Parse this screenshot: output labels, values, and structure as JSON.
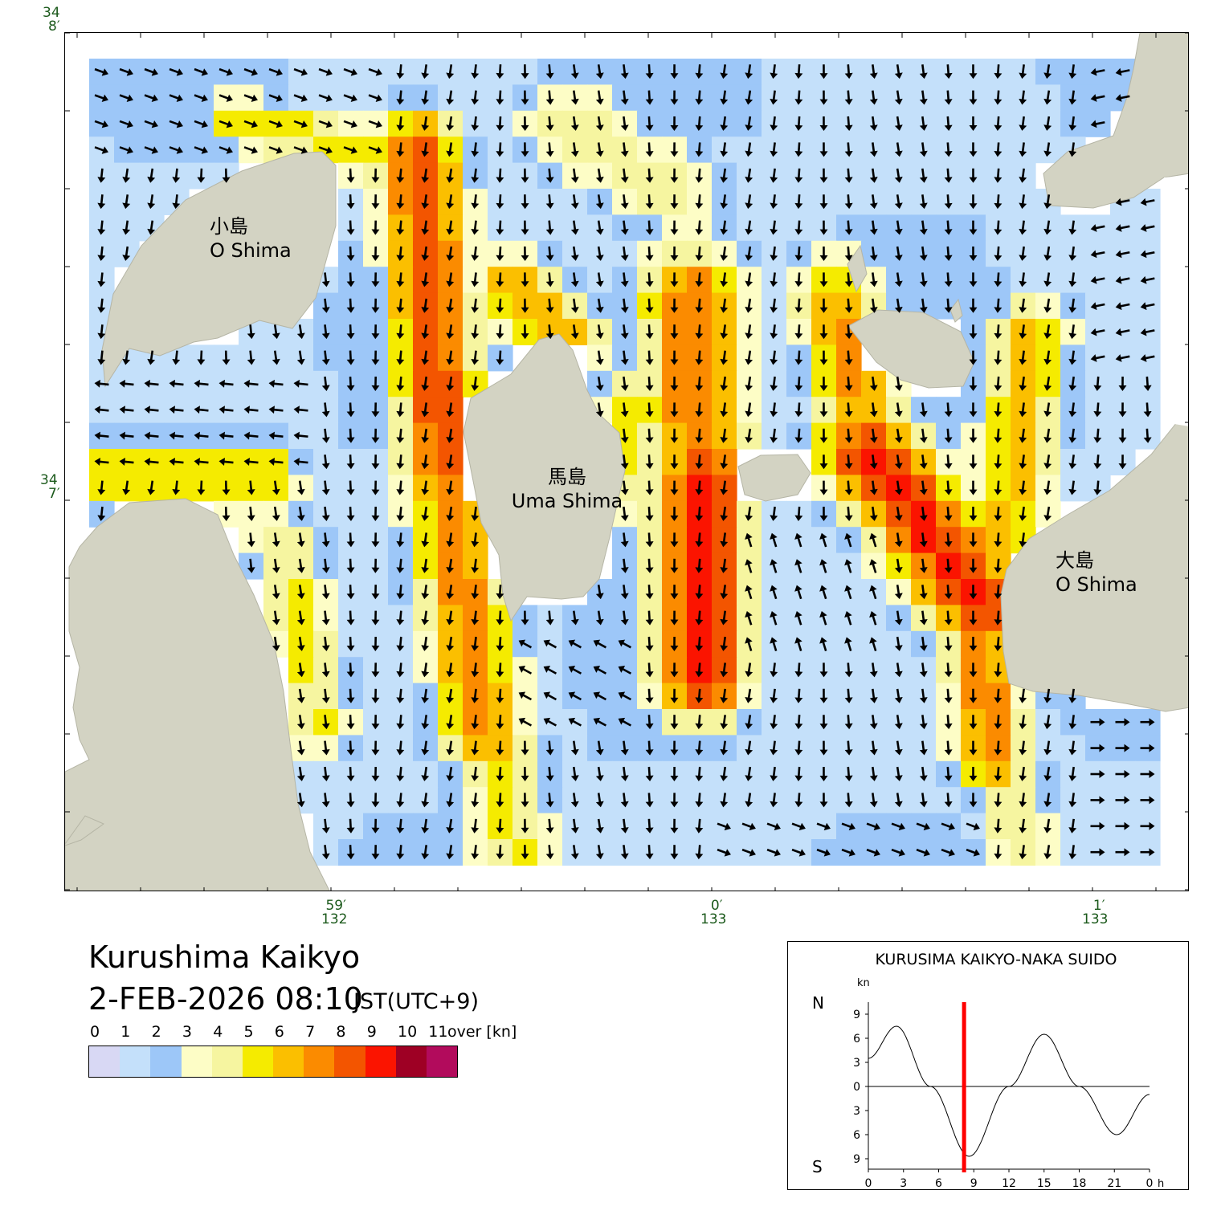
{
  "title": "Kurushima Kaikyo",
  "datetime": "2-FEB-2026 08:10",
  "timezone": "JST(UTC+9)",
  "colors": {
    "land": "#d3d3c3",
    "land_edge": "#b5b5a5",
    "arrow": "#000000",
    "tick_label": "#1c5a1c",
    "current_marker": "#ff0000",
    "speed_scale": [
      "#d8d8f4",
      "#c4e0fa",
      "#9dc7f8",
      "#fdfdc6",
      "#f6f5a0",
      "#f5eb00",
      "#fbbf00",
      "#fb8b00",
      "#f35500",
      "#fb1400",
      "#9e0024",
      "#b20b5c"
    ]
  },
  "legend": {
    "labels": [
      "0",
      "1",
      "2",
      "3",
      "4",
      "5",
      "6",
      "7",
      "8",
      "9",
      "10",
      "11"
    ],
    "over_label": "over",
    "unit": "[kn]"
  },
  "map": {
    "lat_labels": [
      {
        "deg": "34",
        "min": "8′"
      },
      {
        "deg": "34",
        "min": "7′"
      }
    ],
    "lon_labels": [
      {
        "min": "59′",
        "deg": "132"
      },
      {
        "min": "0′",
        "deg": "133"
      },
      {
        "min": "1′",
        "deg": "133"
      }
    ],
    "islands": [
      {
        "name_ja": "小島",
        "name_en": "O Shima"
      },
      {
        "name_ja": "馬島",
        "name_en": "Uma Shima"
      },
      {
        "name_ja": "大島",
        "name_en": "O Shima"
      }
    ]
  },
  "tide_graph": {
    "station": "KURUSIMA KAIKYO-NAKA SUIDO",
    "unit": "kn",
    "north_label": "N",
    "south_label": "S",
    "y_ticks": [
      "9",
      "6",
      "3",
      "0",
      "3",
      "6",
      "9"
    ],
    "x_ticks": [
      "0",
      "3",
      "6",
      "9",
      "12",
      "15",
      "18",
      "21",
      "0"
    ],
    "x_unit": "h",
    "current_time_hours": 8.17,
    "curve": {
      "hours": [
        0,
        2.4,
        5.3,
        8.6,
        12.0,
        15.0,
        18.0,
        21.2,
        24.0
      ],
      "speeds": [
        3.5,
        7.5,
        0,
        -8.7,
        0,
        6.5,
        0,
        -6.0,
        -1.0
      ]
    }
  }
}
